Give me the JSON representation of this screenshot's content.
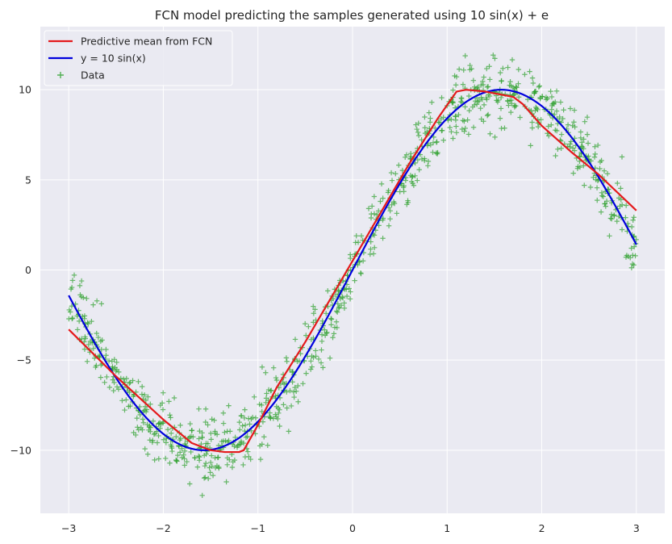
{
  "chart_data": {
    "type": "scatter",
    "title": "FCN model predicting the samples generated using 10 sin(x) + e",
    "xlabel": "",
    "ylabel": "",
    "xlim": [
      -3.3,
      3.3
    ],
    "ylim": [
      -13.5,
      13.5
    ],
    "x_ticks": [
      -3,
      -2,
      -1,
      0,
      1,
      2,
      3
    ],
    "y_ticks": [
      -10,
      -5,
      0,
      5,
      10
    ],
    "x_tick_labels": [
      "−3",
      "−2",
      "−1",
      "0",
      "1",
      "2",
      "3"
    ],
    "y_tick_labels": [
      "−10",
      "−5",
      "0",
      "5",
      "10"
    ],
    "grid": true,
    "legend_position": "upper-left",
    "background_color": "#eaeaf2",
    "grid_color": "#ffffff",
    "series": [
      {
        "name": "Predictive mean from FCN",
        "kind": "line",
        "color": "#e41a1c",
        "x": [
          -3.0,
          -2.5,
          -2.0,
          -1.7,
          -1.5,
          -1.35,
          -1.2,
          -1.15,
          -1.0,
          -0.8,
          -0.5,
          -0.2,
          0.0,
          0.3,
          0.6,
          0.9,
          1.1,
          1.2,
          1.4,
          1.7,
          1.8,
          2.0,
          2.3,
          2.6,
          3.0
        ],
        "y": [
          -3.3,
          -5.9,
          -8.3,
          -9.6,
          -10.0,
          -10.1,
          -10.1,
          -10.0,
          -8.6,
          -6.5,
          -4.0,
          -1.3,
          0.5,
          3.2,
          5.9,
          8.4,
          9.9,
          10.0,
          9.9,
          9.6,
          9.2,
          8.0,
          6.6,
          5.3,
          3.3
        ]
      },
      {
        "name": "y = 10 sin(x)",
        "kind": "function",
        "color": "#0000dd",
        "function": "10*sin(x)",
        "x_range": [
          -3.0,
          3.0
        ]
      },
      {
        "name": "Data",
        "kind": "scatter",
        "marker": "+",
        "color": "#2ca02c",
        "n_points": 1000,
        "x_range": [
          -3.0,
          3.0
        ],
        "noise_std": 0.9,
        "seed": 7
      }
    ]
  }
}
